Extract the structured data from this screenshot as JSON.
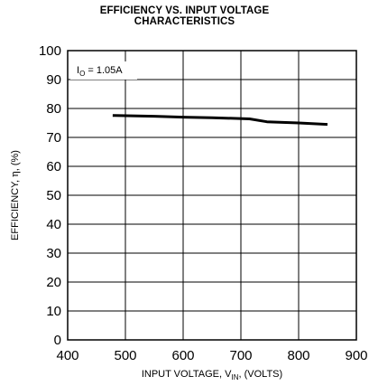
{
  "chart_data": {
    "type": "line",
    "title_line1": "EFFICIENCY VS. INPUT VOLTAGE",
    "title_line2": "CHARACTERISTICS",
    "xlabel": {
      "prefix": "INPUT VOLTAGE, V",
      "sub": "IN",
      "suffix": ", (VOLTS)"
    },
    "ylabel": {
      "prefix": "EFFICIENCY, ",
      "eta": "η",
      "suffix": ", (%)"
    },
    "xlim": [
      400,
      900
    ],
    "ylim": [
      0,
      100
    ],
    "xticks": [
      "400",
      "500",
      "600",
      "700",
      "800",
      "900"
    ],
    "yticks": [
      "0",
      "10",
      "20",
      "30",
      "40",
      "50",
      "60",
      "70",
      "80",
      "90",
      "100"
    ],
    "grid": true,
    "annotation": {
      "prefix": "I",
      "sub": "O",
      "suffix": " = 1.05A"
    },
    "series": [
      {
        "x": [
          478,
          550,
          600,
          650,
          715,
          745,
          800,
          850
        ],
        "y": [
          77.6,
          77.3,
          77.0,
          76.8,
          76.4,
          75.4,
          75.0,
          74.5
        ]
      }
    ]
  }
}
